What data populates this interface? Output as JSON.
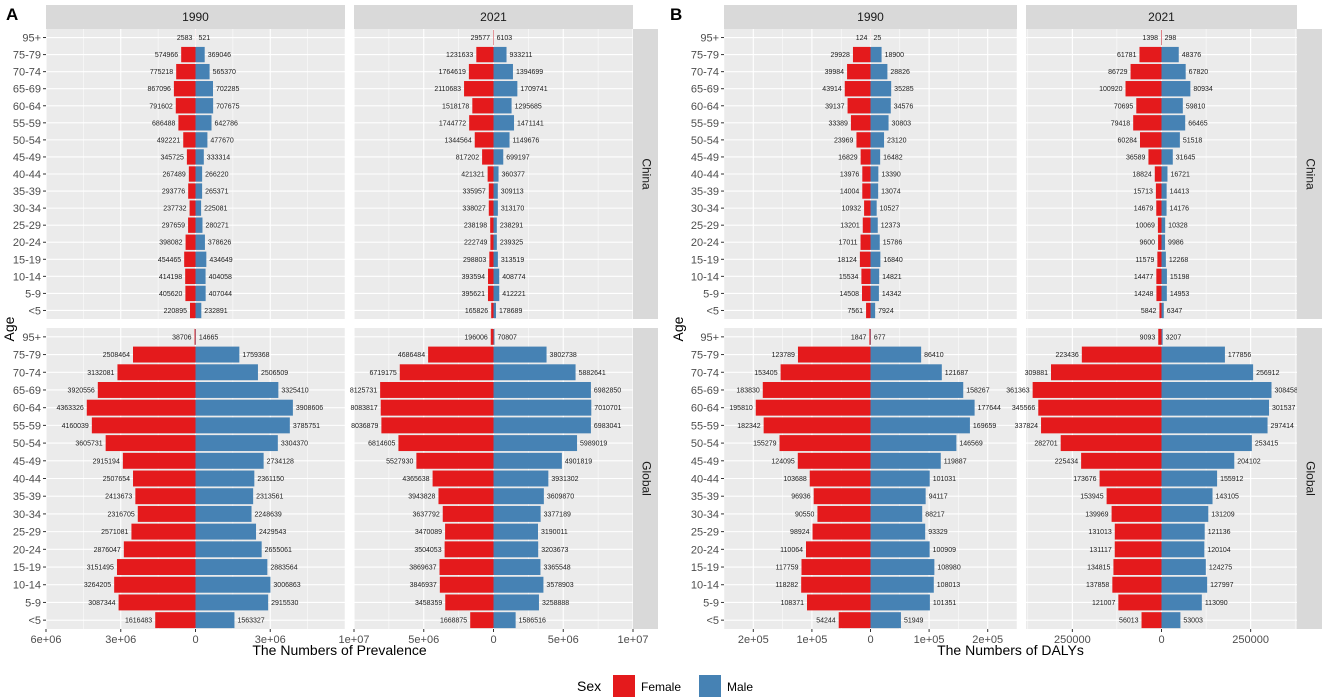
{
  "chart_data": {
    "type": "bar",
    "orientation": "horizontal-population-pyramid",
    "ylabel": "Age",
    "age_groups": [
      "<5",
      "5-9",
      "10-14",
      "15-19",
      "20-24",
      "25-29",
      "30-34",
      "35-39",
      "40-44",
      "45-49",
      "50-54",
      "55-59",
      "60-64",
      "65-69",
      "70-74",
      "75-79",
      "95+"
    ],
    "legend": {
      "title": "Sex",
      "female_label": "Female",
      "male_label": "Male",
      "female_color": "#E41A1C",
      "male_color": "#4682B4",
      "position": "bottom"
    },
    "colors": {
      "female": "#E41A1C",
      "male": "#4682B4",
      "panel_bg": "#EBEBEB",
      "strip_bg": "#D9D9D9",
      "grid": "#FFFFFF"
    },
    "panels": [
      {
        "letter": "A",
        "xlabel": "The Numbers of Prevalence",
        "rows": [
          "China",
          "Global"
        ],
        "cols": [
          {
            "year": "1990",
            "xlim": [
              -6000000,
              6000000
            ],
            "ticks": [
              {
                "v": -6000000,
                "label": "6e+06"
              },
              {
                "v": -3000000,
                "label": "3e+06"
              },
              {
                "v": 0,
                "label": "0"
              },
              {
                "v": 3000000,
                "label": "3e+06"
              }
            ],
            "data": {
              "China": {
                "female": [
                  220895,
                  405620,
                  414198,
                  454465,
                  398082,
                  297659,
                  237732,
                  293776,
                  267489,
                  345725,
                  492221,
                  686488,
                  791602,
                  867096,
                  775218,
                  574966,
                  2583
                ],
                "male": [
                  232891,
                  407044,
                  404058,
                  434649,
                  378626,
                  280271,
                  225081,
                  265371,
                  266220,
                  333314,
                  477670,
                  642786,
                  707675,
                  702285,
                  565370,
                  369046,
                  521
                ]
              },
              "Global": {
                "female": [
                  1616483,
                  3087344,
                  3264205,
                  3151495,
                  2876047,
                  2571081,
                  2316705,
                  2413673,
                  2507654,
                  2915194,
                  3605731,
                  4160039,
                  4363326,
                  3920556,
                  3132081,
                  2508464,
                  38706
                ],
                "male": [
                  1563327,
                  2915530,
                  3006863,
                  2883564,
                  2655061,
                  2429543,
                  2248639,
                  2313561,
                  2361150,
                  2734128,
                  3304370,
                  3785751,
                  3908606,
                  3325410,
                  2506509,
                  1759368,
                  14665
                ]
              }
            }
          },
          {
            "year": "2021",
            "xlim": [
              -10000000,
              10000000
            ],
            "ticks": [
              {
                "v": -10000000,
                "label": "1e+07"
              },
              {
                "v": -5000000,
                "label": "5e+06"
              },
              {
                "v": 0,
                "label": "0"
              },
              {
                "v": 5000000,
                "label": "5e+06"
              },
              {
                "v": 10000000,
                "label": "1e+07"
              }
            ],
            "data": {
              "China": {
                "female": [
                  165826,
                  395621,
                  393594,
                  298803,
                  222749,
                  238198,
                  338027,
                  335957,
                  421321,
                  817202,
                  1344564,
                  1744772,
                  1518178,
                  2110683,
                  1764619,
                  1231633,
                  29577
                ],
                "male": [
                  178689,
                  412221,
                  408774,
                  313519,
                  239325,
                  238291,
                  313170,
                  309113,
                  360377,
                  699197,
                  1149676,
                  1471141,
                  1295685,
                  1709741,
                  1394699,
                  933211,
                  6103
                ]
              },
              "Global": {
                "female": [
                  1668875,
                  3458359,
                  3846937,
                  3869637,
                  3504053,
                  3470089,
                  3637792,
                  3943828,
                  4365638,
                  5527930,
                  6814605,
                  8036879,
                  8083817,
                  8125731,
                  6719175,
                  4686484,
                  196006
                ],
                "male": [
                  1586516,
                  3258888,
                  3578903,
                  3365548,
                  3203673,
                  3190011,
                  3377189,
                  3609870,
                  3931302,
                  4901819,
                  5989019,
                  6983041,
                  7010701,
                  6982850,
                  5882641,
                  3802738,
                  70807
                ]
              }
            }
          }
        ]
      },
      {
        "letter": "B",
        "xlabel": "The Numbers of DALYs",
        "rows": [
          "China",
          "Global"
        ],
        "cols": [
          {
            "year": "1990",
            "xlim": [
              -250000,
              250000
            ],
            "ticks": [
              {
                "v": -200000,
                "label": "2e+05"
              },
              {
                "v": -100000,
                "label": "1e+05"
              },
              {
                "v": 0,
                "label": "0"
              },
              {
                "v": 100000,
                "label": "1e+05"
              },
              {
                "v": 200000,
                "label": "2e+05"
              }
            ],
            "data": {
              "China": {
                "female": [
                  7561,
                  14508,
                  15534,
                  18124,
                  17011,
                  13201,
                  10932,
                  14004,
                  13976,
                  16829,
                  23969,
                  33389,
                  39137,
                  43914,
                  39984,
                  29928,
                  124
                ],
                "male": [
                  7924,
                  14342,
                  14821,
                  16840,
                  15786,
                  12373,
                  10527,
                  13074,
                  13390,
                  16482,
                  23120,
                  30803,
                  34576,
                  35285,
                  28826,
                  18900,
                  25
                ]
              },
              "Global": {
                "female": [
                  54244,
                  108371,
                  118282,
                  117759,
                  110064,
                  98924,
                  90550,
                  96936,
                  103688,
                  124095,
                  155279,
                  182342,
                  195810,
                  183830,
                  153405,
                  123789,
                  1847
                ],
                "male": [
                  51949,
                  101351,
                  108013,
                  108980,
                  100909,
                  93329,
                  88217,
                  94117,
                  101031,
                  119887,
                  146569,
                  169659,
                  177644,
                  158267,
                  121687,
                  86410,
                  677
                ]
              }
            }
          },
          {
            "year": "2021",
            "xlim": [
              -380000,
              380000
            ],
            "ticks": [
              {
                "v": -250000,
                "label": "250000"
              },
              {
                "v": 0,
                "label": "0"
              },
              {
                "v": 250000,
                "label": "250000"
              }
            ],
            "data": {
              "China": {
                "female": [
                  5842,
                  14248,
                  14477,
                  11579,
                  9600,
                  10069,
                  14679,
                  15713,
                  18824,
                  36589,
                  60284,
                  79418,
                  70695,
                  100920,
                  86729,
                  61781,
                  1398
                ],
                "male": [
                  6347,
                  14953,
                  15198,
                  12268,
                  9986,
                  10328,
                  14176,
                  14413,
                  16721,
                  31645,
                  51518,
                  66465,
                  59810,
                  80934,
                  67820,
                  48376,
                  298
                ]
              },
              "Global": {
                "female": [
                  56013,
                  121007,
                  137858,
                  134815,
                  131117,
                  131013,
                  139969,
                  153945,
                  173676,
                  225434,
                  282701,
                  337824,
                  345566,
                  361363,
                  309881,
                  223436,
                  9093
                ],
                "male": [
                  53003,
                  113090,
                  127997,
                  124275,
                  120104,
                  121136,
                  131209,
                  143105,
                  155912,
                  204102,
                  253415,
                  297414,
                  301537,
                  308458,
                  256912,
                  177856,
                  3207
                ]
              }
            }
          }
        ]
      }
    ]
  }
}
